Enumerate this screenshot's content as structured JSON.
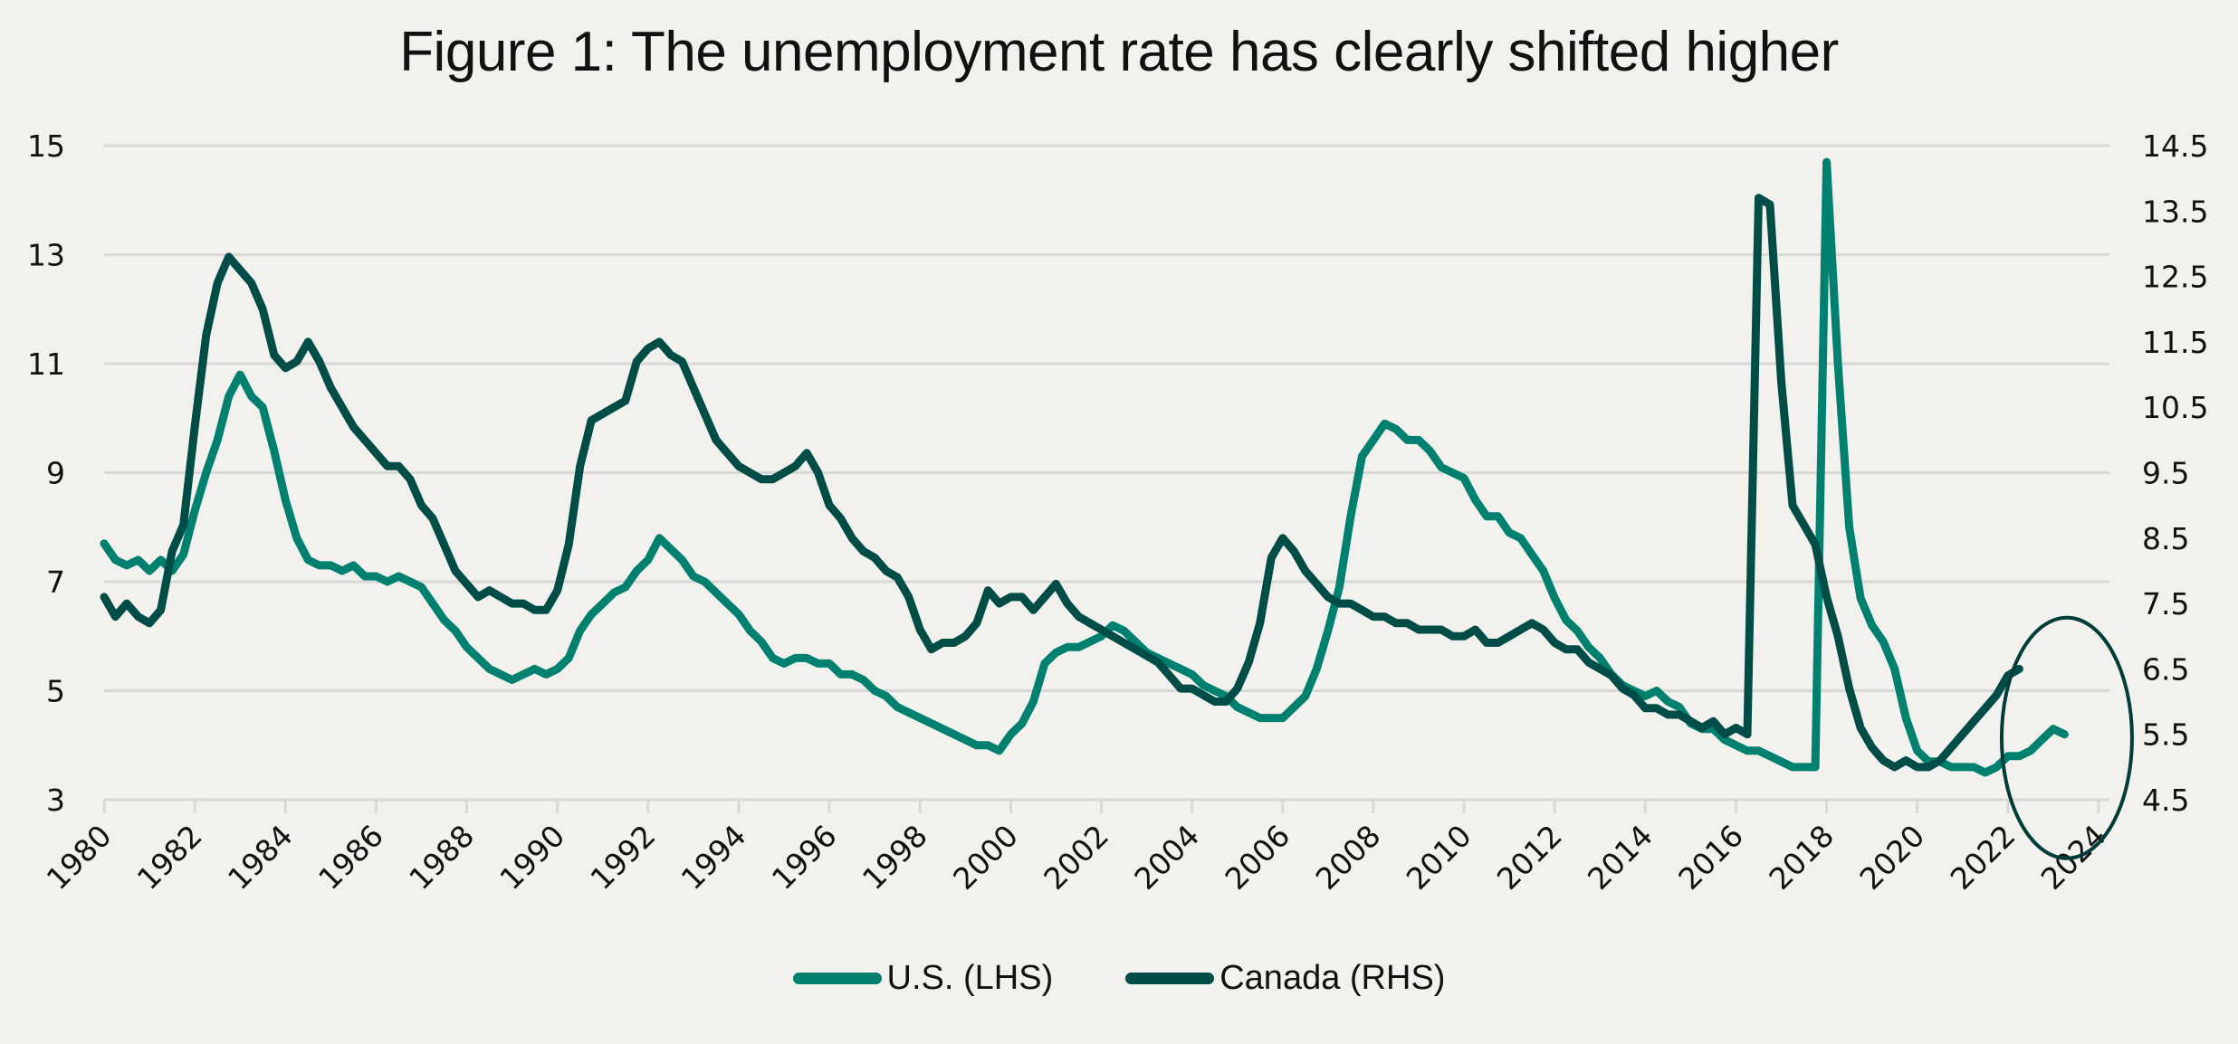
{
  "chart_data": {
    "type": "line",
    "title": "Figure 1: The unemployment rate has clearly shifted higher",
    "xlabel": "",
    "ylabel_left": "",
    "ylabel_right": "",
    "x_range": [
      1980,
      2024.5
    ],
    "x_ticks": [
      "1980",
      "1982",
      "1984",
      "1986",
      "1988",
      "1990",
      "1992",
      "1994",
      "1996",
      "1998",
      "2000",
      "2002",
      "2004",
      "2006",
      "2008",
      "2010",
      "2012",
      "2014",
      "2016",
      "2018",
      "2020",
      "2022",
      "2024"
    ],
    "y_left": {
      "range": [
        3,
        15
      ],
      "ticks": [
        "3",
        "5",
        "7",
        "9",
        "11",
        "13",
        "15"
      ]
    },
    "y_right": {
      "range": [
        4.5,
        14.5
      ],
      "ticks": [
        "4.5",
        "5.5",
        "6.5",
        "7.5",
        "8.5",
        "9.5",
        "10.5",
        "11.5",
        "12.5",
        "13.5",
        "14.5"
      ]
    },
    "grid": true,
    "legend_position": "bottom-center",
    "annotation": {
      "type": "ellipse",
      "label": "highlight recent rise",
      "x_center": 2023.3,
      "y_right_center": 5.5
    },
    "series": [
      {
        "name": "U.S. (LHS)",
        "axis": "left",
        "color": "#00806f",
        "x_step": 0.25,
        "x_start": 1980.0,
        "values": [
          7.7,
          7.4,
          7.3,
          7.4,
          7.2,
          7.4,
          7.2,
          7.5,
          8.3,
          9.0,
          9.6,
          10.4,
          10.8,
          10.4,
          10.2,
          9.4,
          8.5,
          7.8,
          7.4,
          7.3,
          7.3,
          7.2,
          7.3,
          7.1,
          7.1,
          7.0,
          7.1,
          7.0,
          6.9,
          6.6,
          6.3,
          6.1,
          5.8,
          5.6,
          5.4,
          5.3,
          5.2,
          5.3,
          5.4,
          5.3,
          5.4,
          5.6,
          6.1,
          6.4,
          6.6,
          6.8,
          6.9,
          7.2,
          7.4,
          7.8,
          7.6,
          7.4,
          7.1,
          7.0,
          6.8,
          6.6,
          6.4,
          6.1,
          5.9,
          5.6,
          5.5,
          5.6,
          5.6,
          5.5,
          5.5,
          5.3,
          5.3,
          5.2,
          5.0,
          4.9,
          4.7,
          4.6,
          4.5,
          4.4,
          4.3,
          4.2,
          4.1,
          4.0,
          4.0,
          3.9,
          4.2,
          4.4,
          4.8,
          5.5,
          5.7,
          5.8,
          5.8,
          5.9,
          6.0,
          6.2,
          6.1,
          5.9,
          5.7,
          5.6,
          5.5,
          5.4,
          5.3,
          5.1,
          5.0,
          4.9,
          4.7,
          4.6,
          4.5,
          4.5,
          4.5,
          4.7,
          4.9,
          5.4,
          6.1,
          6.9,
          8.2,
          9.3,
          9.6,
          9.9,
          9.8,
          9.6,
          9.6,
          9.4,
          9.1,
          9.0,
          8.9,
          8.5,
          8.2,
          8.2,
          7.9,
          7.8,
          7.5,
          7.2,
          6.7,
          6.3,
          6.1,
          5.8,
          5.6,
          5.3,
          5.1,
          5.0,
          4.9,
          5.0,
          4.8,
          4.7,
          4.4,
          4.3,
          4.3,
          4.1,
          4.0,
          3.9,
          3.9,
          3.8,
          3.7,
          3.6,
          3.6,
          3.6,
          14.7,
          11.0,
          8.0,
          6.7,
          6.2,
          5.9,
          5.4,
          4.5,
          3.9,
          3.7,
          3.7,
          3.6,
          3.6,
          3.6,
          3.5,
          3.6,
          3.8,
          3.8,
          3.9,
          4.1,
          4.3,
          4.2
        ]
      },
      {
        "name": "Canada (RHS)",
        "axis": "right",
        "color": "#004d47",
        "x_step": 0.25,
        "x_start": 1980.0,
        "values": [
          7.6,
          7.3,
          7.5,
          7.3,
          7.2,
          7.4,
          8.3,
          8.7,
          10.2,
          11.6,
          12.4,
          12.8,
          12.6,
          12.4,
          12.0,
          11.3,
          11.1,
          11.2,
          11.5,
          11.2,
          10.8,
          10.5,
          10.2,
          10.0,
          9.8,
          9.6,
          9.6,
          9.4,
          9.0,
          8.8,
          8.4,
          8.0,
          7.8,
          7.6,
          7.7,
          7.6,
          7.5,
          7.5,
          7.4,
          7.4,
          7.7,
          8.4,
          9.6,
          10.3,
          10.4,
          10.5,
          10.6,
          11.2,
          11.4,
          11.5,
          11.3,
          11.2,
          10.8,
          10.4,
          10.0,
          9.8,
          9.6,
          9.5,
          9.4,
          9.4,
          9.5,
          9.6,
          9.8,
          9.5,
          9.0,
          8.8,
          8.5,
          8.3,
          8.2,
          8.0,
          7.9,
          7.6,
          7.1,
          6.8,
          6.9,
          6.9,
          7.0,
          7.2,
          7.7,
          7.5,
          7.6,
          7.6,
          7.4,
          7.6,
          7.8,
          7.5,
          7.3,
          7.2,
          7.1,
          7.0,
          6.9,
          6.8,
          6.7,
          6.6,
          6.4,
          6.2,
          6.2,
          6.1,
          6.0,
          6.0,
          6.2,
          6.6,
          7.2,
          8.2,
          8.5,
          8.3,
          8.0,
          7.8,
          7.6,
          7.5,
          7.5,
          7.4,
          7.3,
          7.3,
          7.2,
          7.2,
          7.1,
          7.1,
          7.1,
          7.0,
          7.0,
          7.1,
          6.9,
          6.9,
          7.0,
          7.1,
          7.2,
          7.1,
          6.9,
          6.8,
          6.8,
          6.6,
          6.5,
          6.4,
          6.2,
          6.1,
          5.9,
          5.9,
          5.8,
          5.8,
          5.7,
          5.6,
          5.7,
          5.5,
          5.6,
          5.5,
          13.7,
          13.6,
          10.9,
          9.0,
          8.7,
          8.4,
          7.6,
          7.0,
          6.2,
          5.6,
          5.3,
          5.1,
          5.0,
          5.1,
          5.0,
          5.0,
          5.1,
          5.3,
          5.5,
          5.7,
          5.9,
          6.1,
          6.4,
          6.5
        ]
      }
    ]
  },
  "legend": {
    "items": [
      {
        "label": "U.S. (LHS)",
        "color": "#00806f"
      },
      {
        "label": "Canada (RHS)",
        "color": "#004d47"
      }
    ]
  }
}
